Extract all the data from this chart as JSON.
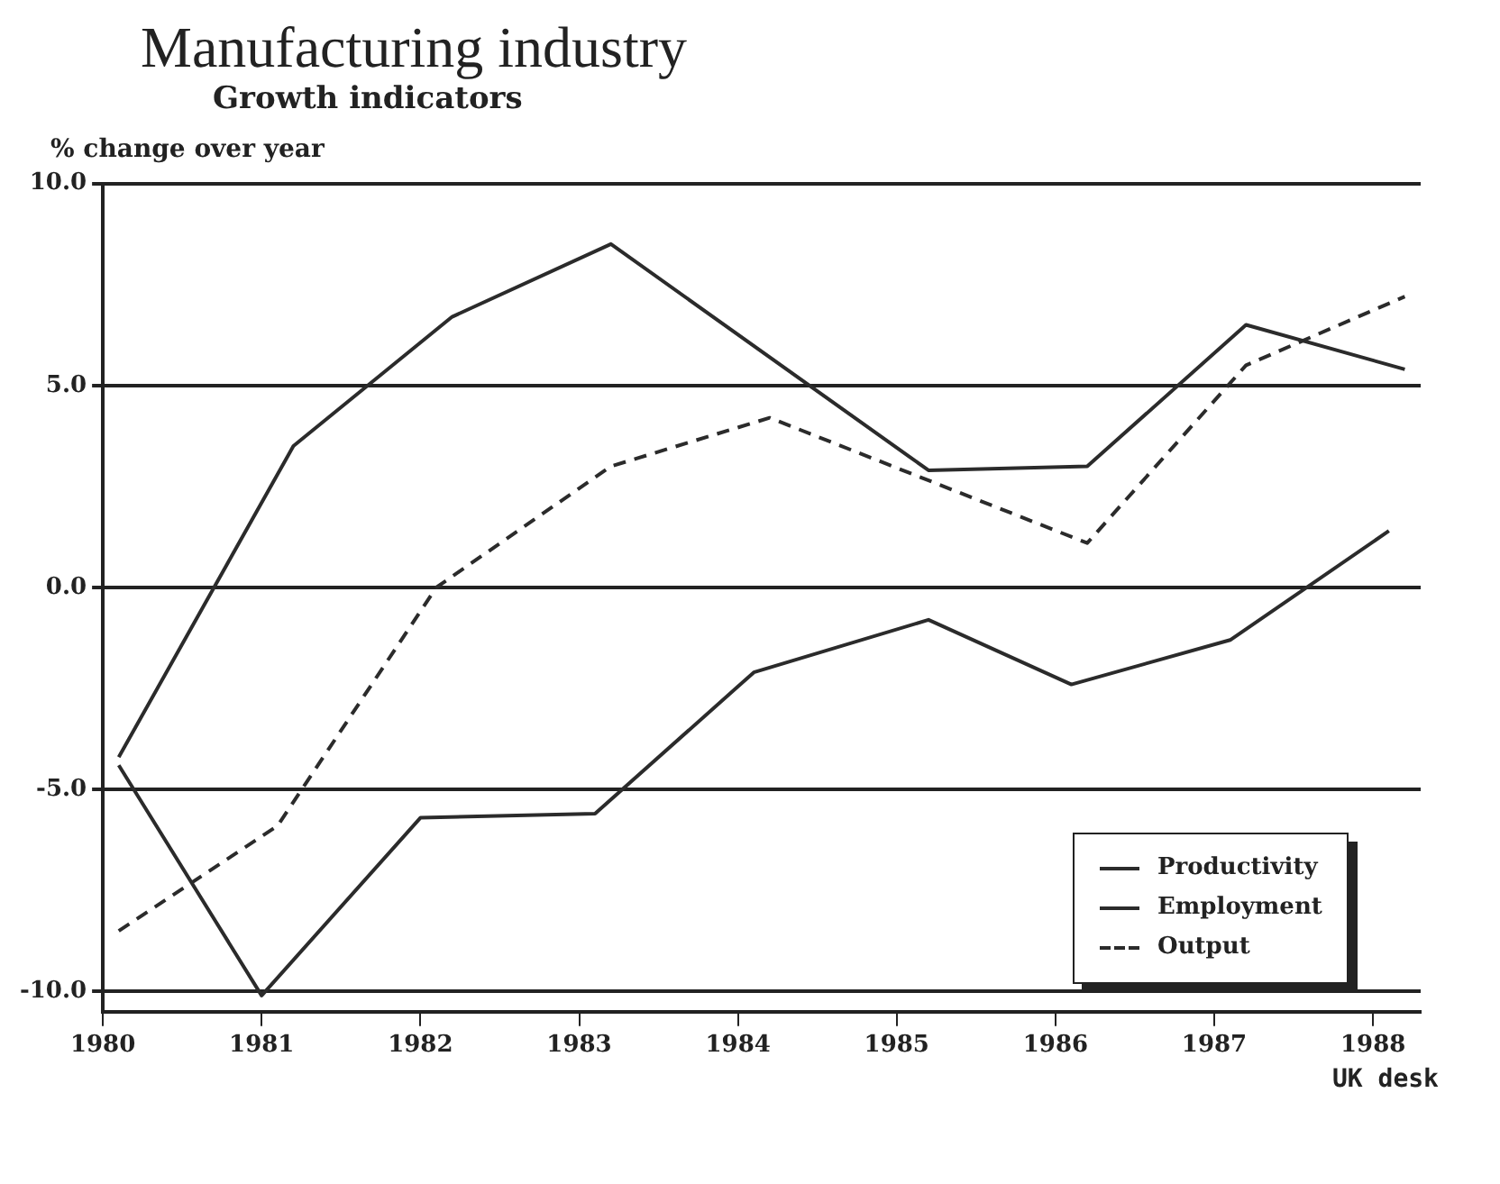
{
  "chart_data": {
    "type": "line",
    "title": "Manufacturing industry",
    "subtitle": "Growth indicators",
    "ylabel": "% change over year",
    "annotations": [
      "UK desk"
    ],
    "series": [
      {
        "name": "Productivity",
        "color": "#2b2b2b",
        "line_style": "solid",
        "x": [
          1980.1,
          1981.2,
          1982.2,
          1983.2,
          1985.2,
          1986.2,
          1987.2,
          1988.2
        ],
        "values": [
          -4.2,
          3.5,
          6.7,
          8.5,
          2.9,
          3.0,
          6.5,
          5.4
        ]
      },
      {
        "name": "Employment",
        "color": "#2b2b2b",
        "line_style": "solid",
        "x": [
          1980.1,
          1981.0,
          1982.0,
          1983.1,
          1984.1,
          1985.2,
          1986.1,
          1987.1,
          1988.1
        ],
        "values": [
          -4.4,
          -10.1,
          -5.7,
          -5.6,
          -2.1,
          -0.8,
          -2.4,
          -1.3,
          1.4
        ]
      },
      {
        "name": "Output",
        "color": "#2b2b2b",
        "line_style": "dashed",
        "x": [
          1980.1,
          1981.1,
          1982.1,
          1983.2,
          1984.2,
          1986.2,
          1987.2,
          1988.2
        ],
        "values": [
          -8.5,
          -5.9,
          0.0,
          3.0,
          4.2,
          1.1,
          5.5,
          7.2
        ]
      }
    ],
    "xlim": [
      1980,
      1988.3
    ],
    "xticks": [
      1980,
      1981,
      1982,
      1983,
      1984,
      1985,
      1986,
      1987,
      1988
    ],
    "ylim": [
      -10.5,
      10
    ],
    "yticks": [
      {
        "value": -10,
        "label": "-10.0"
      },
      {
        "value": -5,
        "label": "-5.0"
      },
      {
        "value": 0,
        "label": "0.0"
      },
      {
        "value": 5,
        "label": "5.0"
      },
      {
        "value": 10,
        "label": "10.0"
      }
    ],
    "grid": "y",
    "legend": "bottom right",
    "marker": "none"
  }
}
